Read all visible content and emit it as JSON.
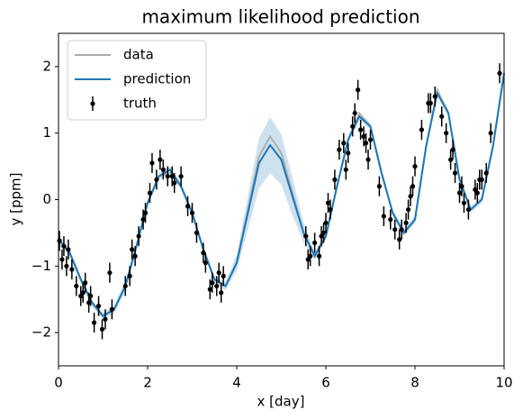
{
  "chart_data": {
    "type": "line",
    "title": "maximum likelihood prediction",
    "xlabel": "x [day]",
    "ylabel": "y [ppm]",
    "xlim": [
      0,
      10
    ],
    "ylim": [
      -2.5,
      2.5
    ],
    "xticks": [
      0,
      2,
      4,
      6,
      8,
      10
    ],
    "yticks": [
      {
        "value": -2,
        "label": "−2"
      },
      {
        "value": -1,
        "label": "−1"
      },
      0,
      1,
      2
    ],
    "legend": "upper left",
    "x": [
      0,
      0.25,
      0.5,
      0.75,
      1,
      1.25,
      1.5,
      1.75,
      2,
      2.25,
      2.5,
      2.75,
      3,
      3.25,
      3.5,
      3.75,
      4,
      4.25,
      4.5,
      4.75,
      5,
      5.25,
      5.5,
      5.75,
      6,
      6.25,
      6.5,
      6.75,
      7,
      7.25,
      7.5,
      7.75,
      8,
      8.25,
      8.5,
      8.75,
      9,
      9.25,
      9.5,
      9.75,
      10
    ],
    "series": [
      {
        "name": "data",
        "color": "#aaaaaa",
        "values": [
          -0.6,
          -0.8,
          -1.2,
          -1.55,
          -1.75,
          -1.65,
          -1.3,
          -0.7,
          -0.05,
          0.35,
          0.4,
          0.2,
          -0.2,
          -0.75,
          -1.2,
          -1.3,
          -0.95,
          -0.15,
          0.65,
          0.95,
          0.7,
          0.1,
          -0.5,
          -0.85,
          -0.55,
          0.2,
          0.9,
          1.3,
          1.1,
          0.4,
          -0.2,
          -0.5,
          -0.3,
          0.8,
          1.65,
          1.3,
          0.3,
          -0.15,
          0,
          0.8,
          1.9
        ]
      },
      {
        "name": "prediction",
        "color": "#1f77b4",
        "values": [
          -0.6,
          -0.8,
          -1.2,
          -1.55,
          -1.75,
          -1.65,
          -1.3,
          -0.7,
          -0.05,
          0.35,
          0.45,
          0.2,
          -0.2,
          -0.75,
          -1.2,
          -1.3,
          -0.95,
          -0.2,
          0.55,
          0.82,
          0.6,
          0.05,
          -0.5,
          -0.85,
          -0.55,
          0.2,
          0.9,
          1.25,
          1.1,
          0.4,
          -0.2,
          -0.5,
          -0.3,
          0.8,
          1.6,
          1.3,
          0.3,
          -0.15,
          0,
          0.8,
          1.9
        ],
        "std": [
          0.08,
          0.05,
          0.05,
          0.05,
          0.05,
          0.06,
          0.08,
          0.06,
          0.05,
          0.05,
          0.05,
          0.05,
          0.05,
          0.05,
          0.05,
          0.06,
          0.12,
          0.25,
          0.38,
          0.42,
          0.38,
          0.28,
          0.15,
          0.06,
          0.05,
          0.05,
          0.05,
          0.05,
          0.05,
          0.05,
          0.05,
          0.05,
          0.06,
          0.05,
          0.05,
          0.05,
          0.05,
          0.05,
          0.05,
          0.05,
          0.08
        ]
      }
    ],
    "truth": {
      "name": "truth",
      "color": "#000000",
      "yerr": 0.15,
      "x": [
        0.02,
        0.08,
        0.12,
        0.18,
        0.22,
        0.3,
        0.4,
        0.5,
        0.55,
        0.6,
        0.68,
        0.72,
        0.8,
        0.9,
        0.98,
        1.05,
        1.15,
        1.2,
        1.5,
        1.6,
        1.65,
        1.72,
        1.8,
        1.9,
        1.95,
        2.05,
        2.1,
        2.2,
        2.28,
        2.35,
        2.45,
        2.55,
        2.6,
        2.75,
        2.9,
        3.0,
        3.1,
        3.25,
        3.3,
        3.4,
        3.45,
        3.55,
        3.6,
        3.65,
        3.7,
        5.55,
        5.6,
        5.65,
        5.75,
        5.85,
        5.9,
        5.95,
        6.0,
        6.05,
        6.1,
        6.2,
        6.3,
        6.4,
        6.45,
        6.5,
        6.6,
        6.65,
        6.72,
        6.78,
        6.85,
        6.9,
        6.95,
        7.0,
        7.2,
        7.3,
        7.45,
        7.55,
        7.65,
        7.7,
        7.8,
        7.85,
        7.9,
        7.95,
        8.0,
        8.15,
        8.3,
        8.35,
        8.45,
        8.6,
        8.7,
        8.8,
        8.85,
        8.9,
        9.0,
        9.05,
        9.1,
        9.2,
        9.35,
        9.4,
        9.45,
        9.5,
        9.6,
        9.7,
        9.9
      ],
      "values": [
        -0.62,
        -0.9,
        -0.7,
        -1.0,
        -0.75,
        -1.05,
        -1.3,
        -1.45,
        -1.4,
        -1.25,
        -1.55,
        -1.45,
        -1.85,
        -1.6,
        -1.95,
        -1.8,
        -1.1,
        -1.65,
        -1.3,
        -1.15,
        -0.75,
        -0.85,
        -0.55,
        -0.3,
        -0.2,
        0.1,
        0.55,
        0.3,
        0.6,
        0.45,
        0.35,
        0.35,
        0.25,
        0.35,
        -0.1,
        -0.2,
        -0.5,
        -0.8,
        -0.95,
        -1.35,
        -1.25,
        -1.3,
        -1.1,
        -1.4,
        -1.15,
        -0.55,
        -0.9,
        -0.85,
        -0.65,
        -0.85,
        -0.55,
        -0.5,
        -0.35,
        -0.05,
        -0.15,
        0.3,
        0.75,
        0.85,
        0.45,
        0.7,
        1.1,
        1.3,
        1.65,
        1.05,
        0.95,
        0.85,
        0.6,
        0.9,
        0.2,
        -0.25,
        -0.3,
        -0.45,
        -0.6,
        -0.45,
        -0.35,
        -0.15,
        0.05,
        0.2,
        0.5,
        1.05,
        1.45,
        1.45,
        1.55,
        1.25,
        1.0,
        0.6,
        0.75,
        0.4,
        0.1,
        0.2,
        -0.05,
        -0.15,
        0.15,
        0.1,
        0.3,
        0.3,
        0.4,
        1.0,
        1.9
      ]
    }
  }
}
